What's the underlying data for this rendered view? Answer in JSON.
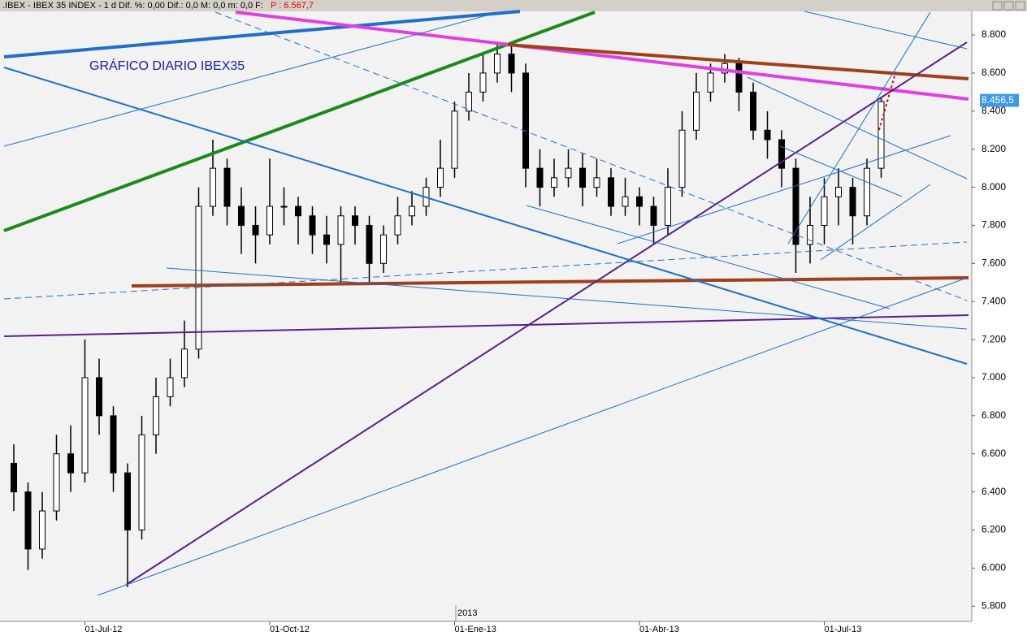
{
  "header": ".IBEX - IBEX 35 INDEX - 1 d  Dif. %: 0,00  Dif.: 0,0  M: 0,0  m: 0,0  F:",
  "header_price": "P : 6.567,7",
  "chart_data": {
    "type": "candlestick",
    "title": "GRÁFICO DIARIO IBEX35",
    "categories": [
      null,
      null,
      null,
      null,
      null,
      "01-Jul-12",
      null,
      null,
      null,
      null,
      null,
      null,
      null,
      null,
      null,
      null,
      null,
      null,
      "01-Oct-12",
      null,
      null,
      null,
      null,
      null,
      null,
      null,
      null,
      null,
      null,
      null,
      null,
      "01-Ene-13",
      null,
      null,
      null,
      null,
      null,
      null,
      null,
      null,
      null,
      null,
      null,
      null,
      "01-Abr-13",
      null,
      null,
      null,
      null,
      null,
      null,
      null,
      null,
      null,
      null,
      null,
      null,
      "01-Jul-13",
      null,
      null,
      null,
      null
    ],
    "year_label": "2013",
    "opens": [
      6550,
      6400,
      6100,
      6300,
      6600,
      6500,
      7000,
      6800,
      6500,
      6200,
      6700,
      6900,
      7000,
      7150,
      7900,
      8100,
      7900,
      7800,
      7750,
      7900,
      7900,
      7850,
      7750,
      7700,
      7850,
      7800,
      7600,
      7750,
      7850,
      7900,
      8000,
      8100,
      8400,
      8500,
      8600,
      8700,
      8600,
      8100,
      8000,
      8050,
      8100,
      8000,
      8050,
      7900,
      7950,
      7900,
      7800,
      8000,
      8300,
      8500,
      8600,
      8650,
      8500,
      8300,
      8250,
      8100,
      7700,
      7800,
      7950,
      8000,
      7850,
      8100
    ],
    "highs": [
      6650,
      6450,
      6400,
      6700,
      6750,
      7200,
      7100,
      6850,
      6550,
      6800,
      7000,
      7100,
      7300,
      8000,
      8250,
      8150,
      8000,
      7900,
      8150,
      8000,
      7950,
      7900,
      7850,
      7900,
      7900,
      7850,
      7800,
      7950,
      7980,
      8050,
      8250,
      8450,
      8600,
      8700,
      8760,
      8740,
      8650,
      8200,
      8150,
      8200,
      8180,
      8150,
      8100,
      8050,
      8000,
      7950,
      8100,
      8400,
      8600,
      8650,
      8700,
      8680,
      8550,
      8400,
      8300,
      8150,
      7950,
      8050,
      8100,
      8050,
      8150,
      8470
    ],
    "lows": [
      6300,
      5990,
      6050,
      6250,
      6400,
      6450,
      6700,
      6400,
      5900,
      6150,
      6600,
      6850,
      6950,
      7100,
      7850,
      7800,
      7650,
      7600,
      7700,
      7800,
      7700,
      7650,
      7600,
      7500,
      7700,
      7500,
      7550,
      7700,
      7800,
      7850,
      7950,
      8050,
      8350,
      8450,
      8550,
      8500,
      8000,
      7900,
      7950,
      8000,
      7900,
      7950,
      7850,
      7850,
      7800,
      7700,
      7750,
      7950,
      8250,
      8450,
      8550,
      8400,
      8250,
      8150,
      8000,
      7550,
      7600,
      7700,
      7800,
      7700,
      7800,
      8050
    ],
    "closes": [
      6400,
      6100,
      6300,
      6600,
      6500,
      7000,
      6800,
      6500,
      6200,
      6700,
      6900,
      7000,
      7150,
      7900,
      8100,
      7900,
      7800,
      7750,
      7900,
      7900,
      7850,
      7750,
      7700,
      7850,
      7800,
      7600,
      7750,
      7850,
      7900,
      8000,
      8100,
      8400,
      8500,
      8600,
      8700,
      8600,
      8100,
      8000,
      8050,
      8100,
      8000,
      8050,
      7900,
      7950,
      7900,
      7800,
      8000,
      8300,
      8500,
      8600,
      8650,
      8500,
      8300,
      8250,
      8100,
      7700,
      7800,
      7950,
      8000,
      7850,
      8100,
      8450
    ],
    "color": "#000000",
    "ylim": [
      5720,
      8924
    ],
    "yticks": [
      {
        "value": 5800,
        "label": "5.800"
      },
      {
        "value": 6000,
        "label": "6.000"
      },
      {
        "value": 6200,
        "label": "6.200"
      },
      {
        "value": 6400,
        "label": "6.400"
      },
      {
        "value": 6600,
        "label": "6.600"
      },
      {
        "value": 6800,
        "label": "6.800"
      },
      {
        "value": 7000,
        "label": "7.000"
      },
      {
        "value": 7200,
        "label": "7.200"
      },
      {
        "value": 7400,
        "label": "7.400"
      },
      {
        "value": 7600,
        "label": "7.600"
      },
      {
        "value": 7800,
        "label": "7.800"
      },
      {
        "value": 8000,
        "label": "8.000"
      },
      {
        "value": 8200,
        "label": "8.200"
      },
      {
        "value": 8400,
        "label": "8.400"
      },
      {
        "value": 8600,
        "label": "8.600"
      },
      {
        "value": 8800,
        "label": "8.800"
      }
    ],
    "last_price": {
      "value": 8456.5,
      "label": "8.456,5"
    },
    "last_price_color": "#3d9ae8"
  }
}
